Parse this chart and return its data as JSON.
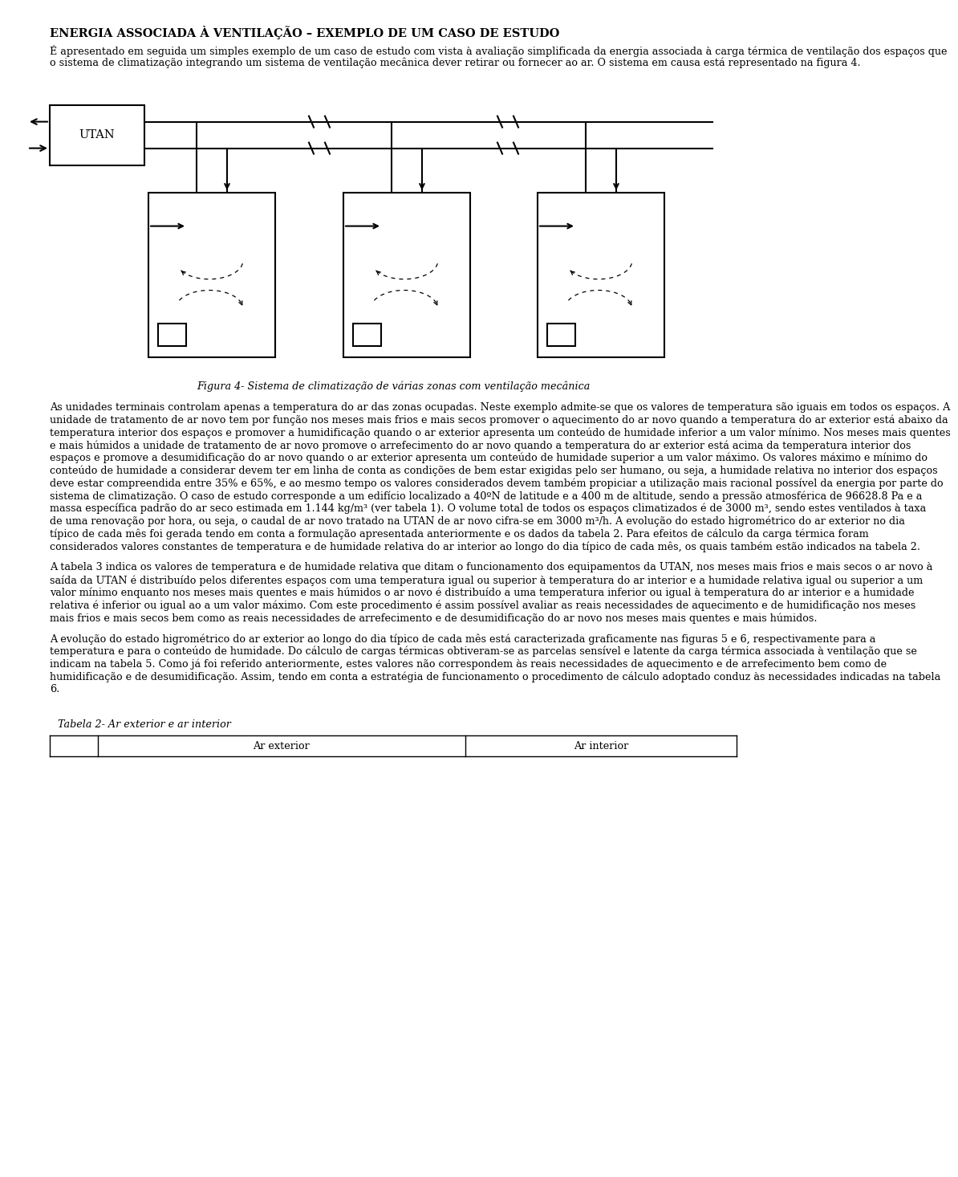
{
  "title": "ENERGIA ASSOCIADA À VENTILAÇÃO – EXEMPLO DE UM CASO DE ESTUDO",
  "intro_paragraph": "É apresentado em seguida um simples exemplo de um caso de estudo com vista à avaliação simplificada da energia associada à carga térmica de ventilação dos espaços que o sistema de climatização integrando um sistema de ventilação mecânica dever retirar ou fornecer ao ar. O sistema em causa está representado na figura 4.",
  "figure_caption": "Figura 4- Sistema de climatização de várias zonas com ventilação mecânica",
  "para2": "As unidades terminais controlam apenas a temperatura do ar das zonas ocupadas. Neste exemplo admite-se que os valores de temperatura são iguais em todos os espaços. A unidade de tratamento de ar novo tem por função nos meses mais frios e mais secos promover o aquecimento do ar novo quando a temperatura do ar exterior está abaixo da temperatura interior dos espaços e promover a humidificação quando o ar exterior apresenta um conteúdo de humidade inferior a um valor mínimo. Nos meses mais quentes e mais húmidos a unidade de tratamento de ar novo promove o arrefecimento do ar novo quando a temperatura do ar exterior está acima da temperatura interior dos espaços e promove a desumidificação do ar novo quando o ar exterior apresenta um conteúdo de humidade superior a um valor máximo. Os valores máximo e mínimo do conteúdo de humidade a considerar devem ter em linha de conta as condições de bem estar exigidas pelo ser humano, ou seja, a humidade relativa no interior dos espaços deve estar compreendida entre 35% e 65%, e ao mesmo tempo os valores considerados devem também propiciar a utilização mais racional possível da energia por parte do sistema de climatização. O caso de estudo corresponde a um edifício localizado a 40ºN de latitude e a 400 m de altitude, sendo a pressão atmosférica de 96628.8 Pa e a massa específica padrão do ar seco estimada em 1.144 kg/m³ (ver tabela 1). O volume total de todos os espaços climatizados é de 3000 m³, sendo estes ventilados à taxa de uma renovação por hora, ou seja, o caudal de ar novo tratado na UTAN de ar novo cifra-se em 3000 m³/h. A evolução do estado higrométrico do ar exterior no dia típico de cada mês foi gerada tendo em conta a formulação apresentada anteriormente e os dados da tabela 2. Para efeitos de cálculo da carga térmica foram considerados valores constantes de temperatura e de humidade relativa do ar interior ao longo do dia típico de cada mês, os quais também estão indicados na tabela 2.",
  "para3": "A tabela 3 indica os valores de temperatura e de humidade relativa que ditam o funcionamento dos equipamentos da UTAN, nos meses mais frios e mais secos o ar novo à saída da UTAN é distribuído pelos diferentes espaços com uma temperatura igual ou superior à temperatura do ar interior e a humidade relativa igual ou superior a um valor mínimo enquanto nos meses mais quentes e mais húmidos o ar novo é distribuído a uma temperatura inferior ou igual à temperatura do ar interior e a humidade relativa é inferior ou igual ao a um valor máximo. Com este procedimento é assim possível avaliar as reais necessidades de aquecimento e de humidificação nos meses mais frios e mais secos bem como as reais necessidades de arrefecimento e de desumidificação do ar novo nos meses mais quentes e mais húmidos.",
  "para4": "A evolução do estado higrométrico do ar exterior ao longo do dia típico de cada mês está caracterizada graficamente nas figuras 5 e 6, respectivamente para a temperatura e para o conteúdo de humidade. Do cálculo de cargas térmicas obtiveram-se as parcelas sensível e latente da carga térmica associada à ventilação que se indicam na tabela 5. Como já foi referido anteriormente, estes valores não correspondem às reais necessidades de aquecimento e de arrefecimento bem como de humidificação e de desumidificação. Assim, tendo em conta a estratégia de funcionamento o procedimento de cálculo adoptado conduz às necessidades indicadas na tabela 6.",
  "table2_title": "Tabela 2- Ar exterior e ar interior",
  "table2_headers": [
    "",
    "Ar exterior",
    "Ar interior"
  ],
  "bg_color": "#ffffff",
  "text_color": "#000000"
}
